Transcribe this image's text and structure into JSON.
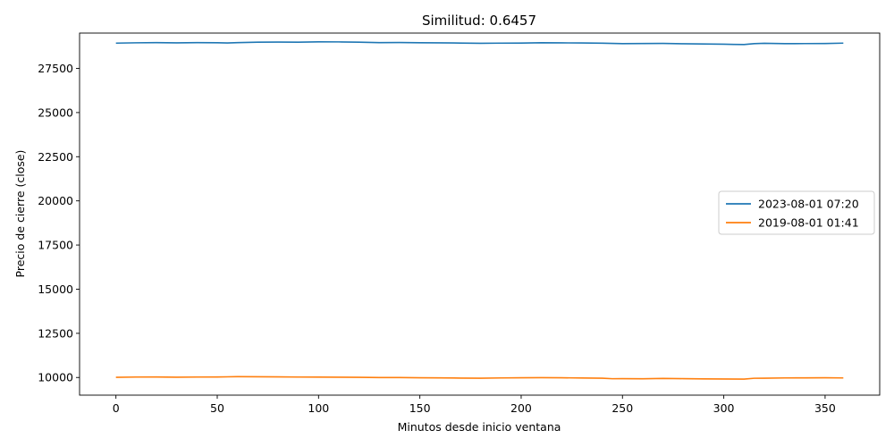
{
  "chart_data": {
    "type": "line",
    "title": "Similitud: 0.6457",
    "xlabel": "Minutos desde inicio ventana",
    "ylabel": "Precio de cierre (close)",
    "xlim": [
      -17.95,
      376.95
    ],
    "ylim": [
      9000,
      29500
    ],
    "xticks": [
      0,
      50,
      100,
      150,
      200,
      250,
      300,
      350
    ],
    "yticks": [
      10000,
      12500,
      15000,
      17500,
      20000,
      22500,
      25000,
      27500
    ],
    "grid": false,
    "legend_position": "center-right",
    "series": [
      {
        "name": "2023-08-01 07:20",
        "color": "#1f77b4",
        "x": [
          0,
          10,
          20,
          30,
          40,
          50,
          55,
          60,
          70,
          80,
          90,
          100,
          110,
          120,
          130,
          140,
          150,
          160,
          170,
          180,
          190,
          200,
          210,
          220,
          230,
          240,
          250,
          260,
          270,
          280,
          290,
          300,
          305,
          310,
          315,
          320,
          330,
          340,
          350,
          359
        ],
        "y": [
          28930,
          28950,
          28960,
          28945,
          28960,
          28955,
          28940,
          28960,
          28985,
          28990,
          28985,
          29005,
          29000,
          28985,
          28960,
          28965,
          28955,
          28945,
          28935,
          28920,
          28930,
          28935,
          28955,
          28945,
          28940,
          28925,
          28900,
          28910,
          28915,
          28895,
          28885,
          28870,
          28860,
          28850,
          28900,
          28920,
          28900,
          28905,
          28910,
          28930
        ]
      },
      {
        "name": "2019-08-01 01:41",
        "color": "#ff7f0e",
        "x": [
          0,
          10,
          20,
          30,
          40,
          50,
          60,
          70,
          80,
          90,
          100,
          110,
          120,
          130,
          140,
          150,
          160,
          170,
          180,
          190,
          200,
          210,
          220,
          230,
          240,
          245,
          250,
          260,
          270,
          280,
          290,
          300,
          310,
          315,
          320,
          330,
          340,
          350,
          359
        ],
        "y": [
          10010,
          10025,
          10030,
          10015,
          10025,
          10030,
          10045,
          10040,
          10035,
          10025,
          10020,
          10015,
          10010,
          9995,
          9995,
          9985,
          9980,
          9965,
          9960,
          9975,
          9985,
          9990,
          9985,
          9970,
          9960,
          9930,
          9935,
          9925,
          9945,
          9935,
          9920,
          9915,
          9910,
          9955,
          9960,
          9975,
          9980,
          9985,
          9975
        ]
      }
    ]
  }
}
